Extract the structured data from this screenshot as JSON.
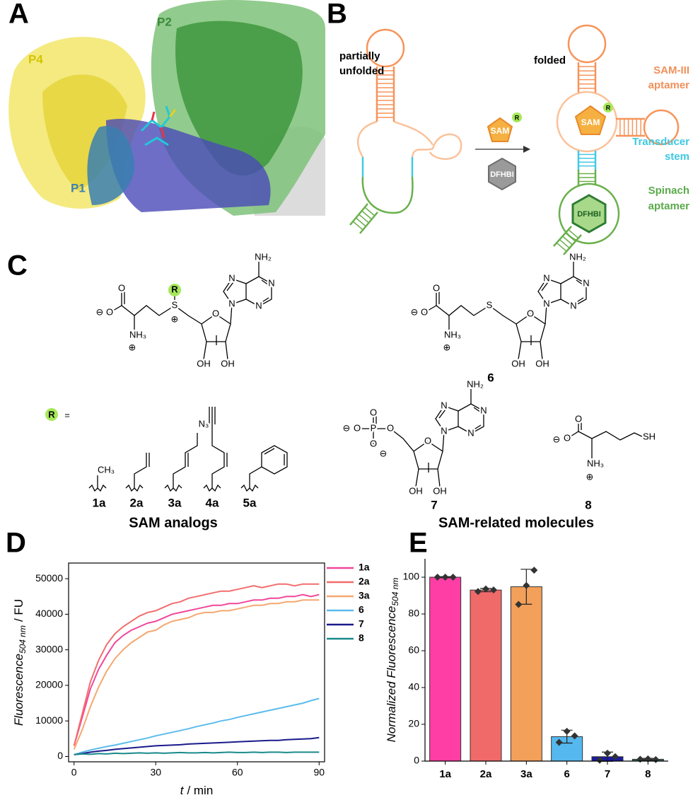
{
  "panels": {
    "a": {
      "label": "A",
      "regions": [
        "P4",
        "P2",
        "P1"
      ]
    },
    "b": {
      "label": "B",
      "unfolded": [
        "partially",
        "unfolded"
      ],
      "folded": "folded",
      "ligand": "SAM",
      "r": "R",
      "dye": "DFHBI",
      "sam_aptamer": [
        "SAM-III",
        "aptamer"
      ],
      "transducer": [
        "Transducer",
        "stem"
      ],
      "spinach": [
        "Spinach",
        "aptamer"
      ]
    },
    "c": {
      "label": "C",
      "sam_analog": [
        "⊖",
        "O",
        "O",
        "NH₃",
        "⊕",
        "S",
        "⊕",
        "R",
        "O",
        "OH",
        "OH",
        "N",
        "N",
        "N",
        "N",
        "NH₂"
      ],
      "compound6": {
        "atoms": [
          "⊖",
          "O",
          "O",
          "NH₃",
          "⊕",
          "S",
          "O",
          "OH",
          "OH",
          "N",
          "N",
          "N",
          "N",
          "NH₂"
        ],
        "number": "6"
      },
      "r_definition": [
        "R",
        "="
      ],
      "substituent_atoms": [
        "CH₃",
        "N₃"
      ],
      "analog_numbers": [
        "1a",
        "2a",
        "3a",
        "4a",
        "5a"
      ],
      "analogs_title": "SAM analogs",
      "compound7": {
        "atoms": [
          "⊖",
          "O",
          "P",
          "O",
          "O",
          "⊖",
          "O",
          "O",
          "OH",
          "OH",
          "N",
          "N",
          "N",
          "N",
          "NH₂"
        ],
        "number": "7"
      },
      "compound8": {
        "atoms": [
          "⊖",
          "O",
          "O",
          "SH",
          "NH₃",
          "⊕"
        ],
        "number": "8"
      },
      "related_title": "SAM-related molecules"
    }
  },
  "chart_data": [
    {
      "type": "line",
      "panel": "D",
      "x_label": {
        "symbol": "t",
        "unit": "/ min"
      },
      "y_label": {
        "text": "Fluorescence",
        "sub": "504 nm",
        "unit": "/ FU"
      },
      "x": [
        0,
        3,
        6,
        9,
        12,
        15,
        18,
        21,
        24,
        27,
        30,
        33,
        36,
        39,
        42,
        45,
        48,
        51,
        54,
        57,
        60,
        63,
        66,
        69,
        72,
        75,
        78,
        81,
        84,
        87,
        90
      ],
      "series": [
        {
          "name": "1a",
          "color": "#f0479a",
          "values": [
            3000,
            11000,
            19000,
            24500,
            28500,
            32000,
            34000,
            35500,
            36500,
            37500,
            38000,
            39000,
            40000,
            40500,
            41000,
            41500,
            42000,
            42500,
            42500,
            43000,
            43000,
            43500,
            44000,
            44000,
            44500,
            44500,
            45000,
            45000,
            45500,
            45000,
            45500
          ]
        },
        {
          "name": "2a",
          "color": "#f26d6d",
          "values": [
            3000,
            12000,
            21000,
            27000,
            31500,
            34500,
            36500,
            38000,
            39500,
            40500,
            41000,
            42000,
            43000,
            43500,
            44500,
            45000,
            45500,
            46000,
            46500,
            46500,
            47000,
            47500,
            48000,
            47500,
            48000,
            48500,
            48500,
            48000,
            48500,
            48500,
            48500
          ]
        },
        {
          "name": "3a",
          "color": "#f4a870",
          "values": [
            2000,
            7500,
            14000,
            19500,
            24000,
            27500,
            30000,
            32000,
            33500,
            35000,
            35500,
            37000,
            38000,
            38500,
            39000,
            40000,
            40500,
            40500,
            41000,
            41000,
            41500,
            42000,
            42500,
            42500,
            43000,
            43000,
            43500,
            43500,
            44000,
            44000,
            44000
          ]
        },
        {
          "name": "6",
          "color": "#5bbcec",
          "values": [
            500,
            1200,
            1800,
            2300,
            2800,
            3200,
            3700,
            4200,
            4700,
            5200,
            5800,
            6300,
            6800,
            7300,
            7800,
            8400,
            8900,
            9400,
            10000,
            10400,
            11000,
            11500,
            12000,
            12500,
            13000,
            13500,
            14000,
            14500,
            15000,
            15700,
            16300
          ]
        },
        {
          "name": "7",
          "color": "#1a1a8c",
          "values": [
            500,
            800,
            1200,
            1500,
            1700,
            2000,
            2200,
            2400,
            2600,
            2800,
            3000,
            3100,
            3200,
            3300,
            3500,
            3600,
            3700,
            3800,
            3900,
            4000,
            4100,
            4200,
            4300,
            4400,
            4500,
            4500,
            4700,
            4800,
            4900,
            5000,
            5300
          ]
        },
        {
          "name": "8",
          "color": "#1a8a8a",
          "values": [
            500,
            700,
            600,
            800,
            700,
            900,
            800,
            900,
            1000,
            900,
            1000,
            900,
            1000,
            1100,
            1000,
            1000,
            1100,
            1000,
            1100,
            1200,
            1100,
            1100,
            1200,
            1100,
            1200,
            1200,
            1100,
            1200,
            1200,
            1200,
            1200
          ]
        }
      ],
      "xlim": [
        -2,
        92
      ],
      "ylim": [
        -1500,
        54400
      ],
      "xticks": [
        0,
        30,
        60,
        90
      ],
      "yticks": [
        0,
        10000,
        20000,
        30000,
        40000,
        50000
      ],
      "legend": "right"
    },
    {
      "type": "bar",
      "panel": "E",
      "y_label": {
        "text": "Normalized Fluorescence",
        "sub": "504 nm"
      },
      "categories": [
        "1a",
        "2a",
        "3a",
        "6",
        "7",
        "8"
      ],
      "values": [
        100,
        93,
        94.8,
        13.3,
        2.4,
        1.0
      ],
      "errors": [
        0.3,
        0.9,
        9.5,
        3.5,
        2.5,
        0.5
      ],
      "points": [
        [
          100,
          100,
          100
        ],
        [
          92.2,
          93.6,
          93.1
        ],
        [
          85.2,
          95.5,
          103.8
        ],
        [
          10.2,
          16.2,
          13.7
        ],
        [
          0.5,
          4.3,
          2.4
        ],
        [
          1.0,
          1.2,
          0.8
        ]
      ],
      "colors": [
        "#ff3ea5",
        "#f06a6a",
        "#f2a05a",
        "#55b8ee",
        "#1a1aa0",
        "#2d6a6a"
      ],
      "ylim": [
        0,
        110
      ],
      "yticks": [
        0,
        20,
        40,
        60,
        80,
        100
      ]
    }
  ]
}
